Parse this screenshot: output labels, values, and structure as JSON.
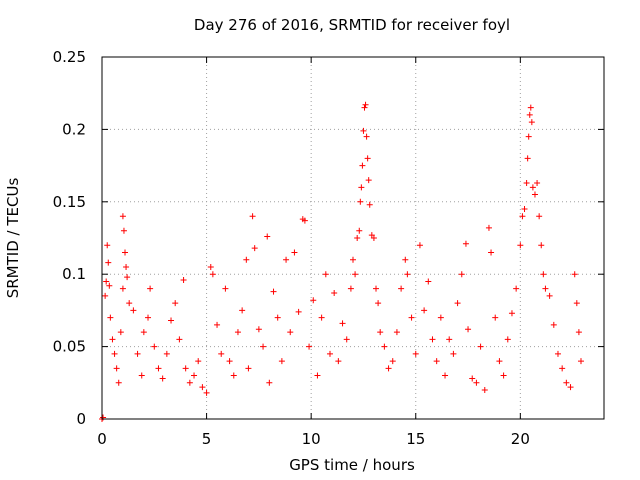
{
  "chart_data": {
    "type": "scatter",
    "title": "Day 276 of 2016, SRMTID for receiver foyl",
    "xlabel": "GPS time / hours",
    "ylabel": "SRMTID / TECUs",
    "xlim": [
      0,
      24
    ],
    "ylim": [
      0,
      0.25
    ],
    "xticks": [
      0,
      5,
      10,
      15,
      20
    ],
    "xtick_labels": [
      "0",
      "5",
      "10",
      "15",
      "20"
    ],
    "yticks": [
      0,
      0.05,
      0.1,
      0.15,
      0.2,
      0.25
    ],
    "ytick_labels": [
      "0",
      "0.05",
      "0.1",
      "0.15",
      "0.2",
      "0.25"
    ],
    "grid": true,
    "marker": "+",
    "color": "#ff0000",
    "series": [
      {
        "name": "SRMTID",
        "points": [
          [
            0.0,
            0.0
          ],
          [
            0.05,
            0.001
          ],
          [
            0.15,
            0.085
          ],
          [
            0.2,
            0.095
          ],
          [
            0.25,
            0.12
          ],
          [
            0.3,
            0.108
          ],
          [
            0.35,
            0.092
          ],
          [
            0.4,
            0.07
          ],
          [
            0.5,
            0.055
          ],
          [
            0.6,
            0.045
          ],
          [
            0.7,
            0.035
          ],
          [
            0.8,
            0.025
          ],
          [
            0.9,
            0.06
          ],
          [
            1.0,
            0.14
          ],
          [
            1.05,
            0.13
          ],
          [
            1.1,
            0.115
          ],
          [
            1.15,
            0.105
          ],
          [
            1.2,
            0.098
          ],
          [
            1.0,
            0.09
          ],
          [
            1.3,
            0.08
          ],
          [
            1.5,
            0.075
          ],
          [
            1.7,
            0.045
          ],
          [
            1.9,
            0.03
          ],
          [
            2.0,
            0.06
          ],
          [
            2.2,
            0.07
          ],
          [
            2.3,
            0.09
          ],
          [
            2.5,
            0.05
          ],
          [
            2.7,
            0.035
          ],
          [
            2.9,
            0.028
          ],
          [
            3.1,
            0.045
          ],
          [
            3.3,
            0.068
          ],
          [
            3.5,
            0.08
          ],
          [
            3.7,
            0.055
          ],
          [
            3.9,
            0.096
          ],
          [
            4.0,
            0.035
          ],
          [
            4.2,
            0.025
          ],
          [
            4.4,
            0.03
          ],
          [
            4.6,
            0.04
          ],
          [
            4.8,
            0.022
          ],
          [
            5.0,
            0.018
          ],
          [
            5.2,
            0.105
          ],
          [
            5.3,
            0.1
          ],
          [
            5.5,
            0.065
          ],
          [
            5.7,
            0.045
          ],
          [
            5.9,
            0.09
          ],
          [
            6.1,
            0.04
          ],
          [
            6.3,
            0.03
          ],
          [
            6.5,
            0.06
          ],
          [
            6.7,
            0.075
          ],
          [
            6.9,
            0.11
          ],
          [
            7.0,
            0.035
          ],
          [
            7.2,
            0.14
          ],
          [
            7.3,
            0.118
          ],
          [
            7.5,
            0.062
          ],
          [
            7.7,
            0.05
          ],
          [
            7.9,
            0.126
          ],
          [
            8.0,
            0.025
          ],
          [
            8.2,
            0.088
          ],
          [
            8.4,
            0.07
          ],
          [
            8.6,
            0.04
          ],
          [
            8.8,
            0.11
          ],
          [
            9.0,
            0.06
          ],
          [
            9.2,
            0.115
          ],
          [
            9.4,
            0.074
          ],
          [
            9.6,
            0.138
          ],
          [
            9.7,
            0.137
          ],
          [
            9.9,
            0.05
          ],
          [
            10.1,
            0.082
          ],
          [
            10.3,
            0.03
          ],
          [
            10.5,
            0.07
          ],
          [
            10.7,
            0.1
          ],
          [
            10.9,
            0.045
          ],
          [
            11.1,
            0.087
          ],
          [
            11.3,
            0.04
          ],
          [
            11.5,
            0.066
          ],
          [
            11.7,
            0.055
          ],
          [
            11.9,
            0.09
          ],
          [
            12.0,
            0.11
          ],
          [
            12.1,
            0.1
          ],
          [
            12.2,
            0.125
          ],
          [
            12.3,
            0.13
          ],
          [
            12.35,
            0.15
          ],
          [
            12.4,
            0.16
          ],
          [
            12.45,
            0.175
          ],
          [
            12.5,
            0.199
          ],
          [
            12.55,
            0.215
          ],
          [
            12.6,
            0.217
          ],
          [
            12.65,
            0.195
          ],
          [
            12.7,
            0.18
          ],
          [
            12.75,
            0.165
          ],
          [
            12.8,
            0.148
          ],
          [
            12.9,
            0.127
          ],
          [
            13.0,
            0.125
          ],
          [
            13.1,
            0.09
          ],
          [
            13.2,
            0.08
          ],
          [
            13.3,
            0.06
          ],
          [
            13.5,
            0.05
          ],
          [
            13.7,
            0.035
          ],
          [
            13.9,
            0.04
          ],
          [
            14.1,
            0.06
          ],
          [
            14.3,
            0.09
          ],
          [
            14.5,
            0.11
          ],
          [
            14.6,
            0.1
          ],
          [
            14.8,
            0.07
          ],
          [
            15.0,
            0.045
          ],
          [
            15.2,
            0.12
          ],
          [
            15.4,
            0.075
          ],
          [
            15.6,
            0.095
          ],
          [
            15.8,
            0.055
          ],
          [
            16.0,
            0.04
          ],
          [
            16.2,
            0.07
          ],
          [
            16.4,
            0.03
          ],
          [
            16.6,
            0.055
          ],
          [
            16.8,
            0.045
          ],
          [
            17.0,
            0.08
          ],
          [
            17.2,
            0.1
          ],
          [
            17.4,
            0.121
          ],
          [
            17.5,
            0.062
          ],
          [
            17.7,
            0.028
          ],
          [
            17.9,
            0.025
          ],
          [
            18.1,
            0.05
          ],
          [
            18.3,
            0.02
          ],
          [
            18.5,
            0.132
          ],
          [
            18.6,
            0.115
          ],
          [
            18.8,
            0.07
          ],
          [
            19.0,
            0.04
          ],
          [
            19.2,
            0.03
          ],
          [
            19.4,
            0.055
          ],
          [
            19.6,
            0.073
          ],
          [
            19.8,
            0.09
          ],
          [
            20.0,
            0.12
          ],
          [
            20.1,
            0.14
          ],
          [
            20.2,
            0.145
          ],
          [
            20.3,
            0.163
          ],
          [
            20.35,
            0.18
          ],
          [
            20.4,
            0.195
          ],
          [
            20.45,
            0.21
          ],
          [
            20.5,
            0.215
          ],
          [
            20.55,
            0.205
          ],
          [
            20.6,
            0.16
          ],
          [
            20.7,
            0.155
          ],
          [
            20.8,
            0.163
          ],
          [
            20.9,
            0.14
          ],
          [
            21.0,
            0.12
          ],
          [
            21.1,
            0.1
          ],
          [
            21.2,
            0.09
          ],
          [
            21.4,
            0.085
          ],
          [
            21.6,
            0.065
          ],
          [
            21.8,
            0.045
          ],
          [
            22.0,
            0.035
          ],
          [
            22.2,
            0.025
          ],
          [
            22.4,
            0.022
          ],
          [
            22.6,
            0.1
          ],
          [
            22.7,
            0.08
          ],
          [
            22.8,
            0.06
          ],
          [
            22.9,
            0.04
          ]
        ]
      }
    ]
  }
}
